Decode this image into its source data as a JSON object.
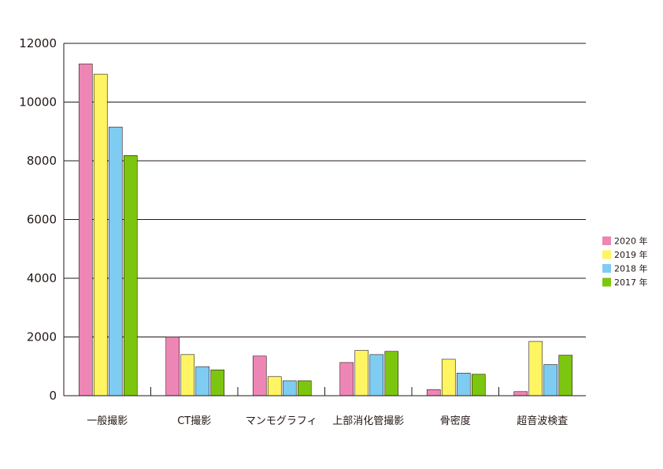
{
  "chart_data": {
    "type": "bar",
    "title": "",
    "xlabel": "",
    "ylabel": "",
    "ylim": [
      0,
      12000
    ],
    "yticks": [
      0,
      2000,
      4000,
      6000,
      8000,
      10000,
      12000
    ],
    "grid": "horizontal",
    "legend_position": "right",
    "categories": [
      "一般撮影",
      "CT撮影",
      "マンモグラフィ",
      "上部消化管撮影",
      "骨密度",
      "超音波検査"
    ],
    "series": [
      {
        "name": "2020 年",
        "color": "#ee86b5",
        "values": [
          11300,
          2000,
          1350,
          1130,
          210,
          140
        ]
      },
      {
        "name": "2019 年",
        "color": "#fff462",
        "values": [
          10950,
          1400,
          650,
          1540,
          1240,
          1850
        ]
      },
      {
        "name": "2018 年",
        "color": "#7fccf2",
        "values": [
          9150,
          990,
          510,
          1400,
          770,
          1060
        ]
      },
      {
        "name": "2017 年",
        "color": "#7dc60f",
        "values": [
          8180,
          880,
          510,
          1510,
          730,
          1380
        ]
      }
    ]
  }
}
